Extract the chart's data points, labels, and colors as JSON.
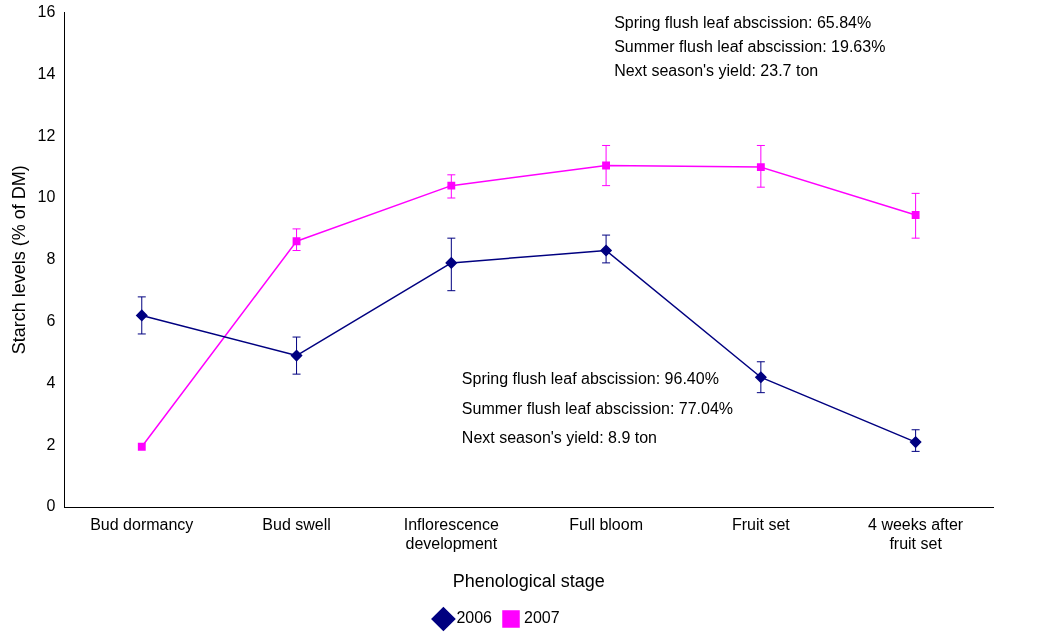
{
  "chart_data": {
    "type": "line",
    "xlabel": "Phenological stage",
    "ylabel": "Starch levels (% of DM)",
    "categories": [
      "Bud dormancy",
      "Bud swell",
      "Inflorescence development",
      "Full bloom",
      "Fruit set",
      "4 weeks after fruit set"
    ],
    "ylim": [
      0,
      16
    ],
    "yticks": [
      0,
      2,
      4,
      6,
      8,
      10,
      12,
      14,
      16
    ],
    "grid": false,
    "legend": "bottom",
    "series": [
      {
        "name": "2006",
        "color": "#000080",
        "marker": "diamond",
        "values": [
          6.2,
          4.9,
          7.9,
          8.3,
          4.2,
          2.1
        ],
        "errors": [
          [
            5.6,
            6.8
          ],
          [
            4.3,
            5.5
          ],
          [
            7.0,
            8.7
          ],
          [
            7.9,
            8.8
          ],
          [
            3.7,
            4.7
          ],
          [
            1.8,
            2.5
          ]
        ]
      },
      {
        "name": "2007",
        "color": "#ff00ff",
        "marker": "square",
        "values": [
          1.95,
          8.6,
          10.4,
          11.05,
          11.0,
          9.45
        ],
        "errors": [
          null,
          [
            8.3,
            9.0
          ],
          [
            10.0,
            10.75
          ],
          [
            10.4,
            11.7
          ],
          [
            10.35,
            11.7
          ],
          [
            8.7,
            10.15
          ]
        ]
      }
    ],
    "annotations": [
      "Spring flush leaf abscission: 65.84%",
      "Summer flush leaf abscission: 19.63%",
      "Next season's yield: 23.7 ton",
      "Spring flush leaf abscission: 96.40%",
      "Summer flush leaf abscission: 77.04%",
      "Next season's yield: 8.9 ton"
    ]
  }
}
